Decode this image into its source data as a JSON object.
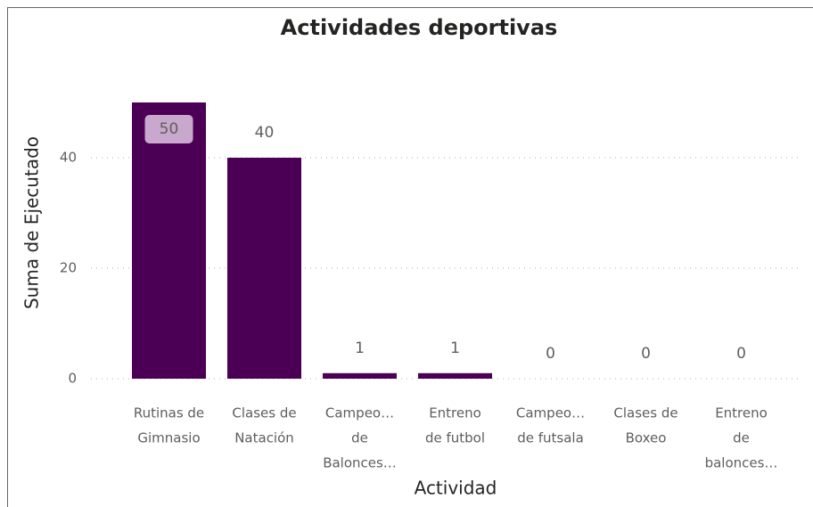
{
  "chart_data": {
    "type": "bar",
    "title": "Actividades deportivas",
    "x_label": "Actividad",
    "y_label": "Suma de Ejecutado",
    "categories": [
      [
        "Rutinas de",
        "Gimnasio"
      ],
      [
        "Clases de",
        "Natación"
      ],
      [
        "Campeo…",
        "de",
        "Balonces…"
      ],
      [
        "Entreno",
        "de futbol"
      ],
      [
        "Campeo…",
        "de futsala"
      ],
      [
        "Clases de",
        "Boxeo"
      ],
      [
        "Entreno",
        "de",
        "balonces…"
      ]
    ],
    "values": [
      50,
      40,
      1,
      1,
      0,
      0,
      0
    ],
    "color": "#4b0055",
    "ylim": [
      0,
      50
    ],
    "yticks": [
      0,
      20,
      40
    ],
    "grid": true
  }
}
